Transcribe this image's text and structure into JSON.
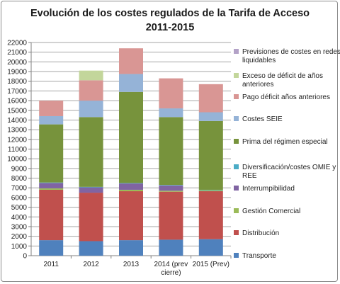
{
  "chart_data": {
    "type": "bar",
    "stacked": true,
    "title": "Evolución de los costes regulados de la Tarifa de Acceso",
    "subtitle": "2011-2015",
    "categories": [
      "2011",
      "2012",
      "2013",
      "2014 (prev cierre)",
      "2015 (Prev)"
    ],
    "category_lines": [
      [
        "2011"
      ],
      [
        "2012"
      ],
      [
        "2013"
      ],
      [
        "2014 (prev",
        "cierre)"
      ],
      [
        "2015 (Prev)"
      ]
    ],
    "ylim": [
      0,
      22000
    ],
    "yticks": [
      0,
      1000,
      2000,
      3000,
      4000,
      5000,
      6000,
      7000,
      8000,
      9000,
      10000,
      11000,
      12000,
      13000,
      14000,
      15000,
      16000,
      17000,
      18000,
      19000,
      20000,
      21000,
      22000
    ],
    "grid": true,
    "legend_position": "right",
    "series": [
      {
        "name": "Transporte",
        "color": "#4f81bd",
        "values": [
          1600,
          1500,
          1600,
          1650,
          1700
        ]
      },
      {
        "name": "Distribución",
        "color": "#c0504d",
        "values": [
          5200,
          5000,
          5050,
          4950,
          4950
        ]
      },
      {
        "name": "Gestión Comercial",
        "color": "#9bbb59",
        "values": [
          150,
          0,
          150,
          100,
          100
        ]
      },
      {
        "name": "Interrumpibilidad",
        "color": "#8064a2",
        "values": [
          550,
          550,
          650,
          550,
          0
        ]
      },
      {
        "name": "Diversificación/costes OMIE y REE",
        "color": "#4bacc6",
        "values": [
          50,
          50,
          50,
          50,
          50
        ]
      },
      {
        "name": "Prima del régimen especial",
        "color": "#77933c",
        "values": [
          6000,
          7200,
          9400,
          7000,
          7100
        ]
      },
      {
        "name": "Costes SEIE",
        "color": "#95b3d7",
        "values": [
          850,
          1700,
          1850,
          900,
          900
        ]
      },
      {
        "name": "Pago déficit años anteriores",
        "color": "#d99694",
        "values": [
          1600,
          2100,
          2650,
          3100,
          2900
        ]
      },
      {
        "name": "Exceso de déficit de años anteriores",
        "color": "#c3d69b",
        "values": [
          0,
          1000,
          0,
          0,
          0
        ]
      },
      {
        "name": "Previsiones de costes en redes liquidables",
        "color": "#b3a2c7",
        "values": [
          0,
          0,
          0,
          0,
          0
        ]
      }
    ],
    "legend_lines": [
      [
        "Previsiones de costes en redes",
        "liquidables"
      ],
      [
        "Exceso de déficit de años",
        "anteriores"
      ],
      [
        "Pago déficit años anteriores"
      ],
      [
        "Costes SEIE"
      ],
      [
        "Prima del régimen especial"
      ],
      [
        "Diversificación/costes OMIE y",
        "REE"
      ],
      [
        "Interrumpibilidad"
      ],
      [
        "Gestión Comercial"
      ],
      [
        "Distribución"
      ],
      [
        "Transporte"
      ]
    ]
  }
}
